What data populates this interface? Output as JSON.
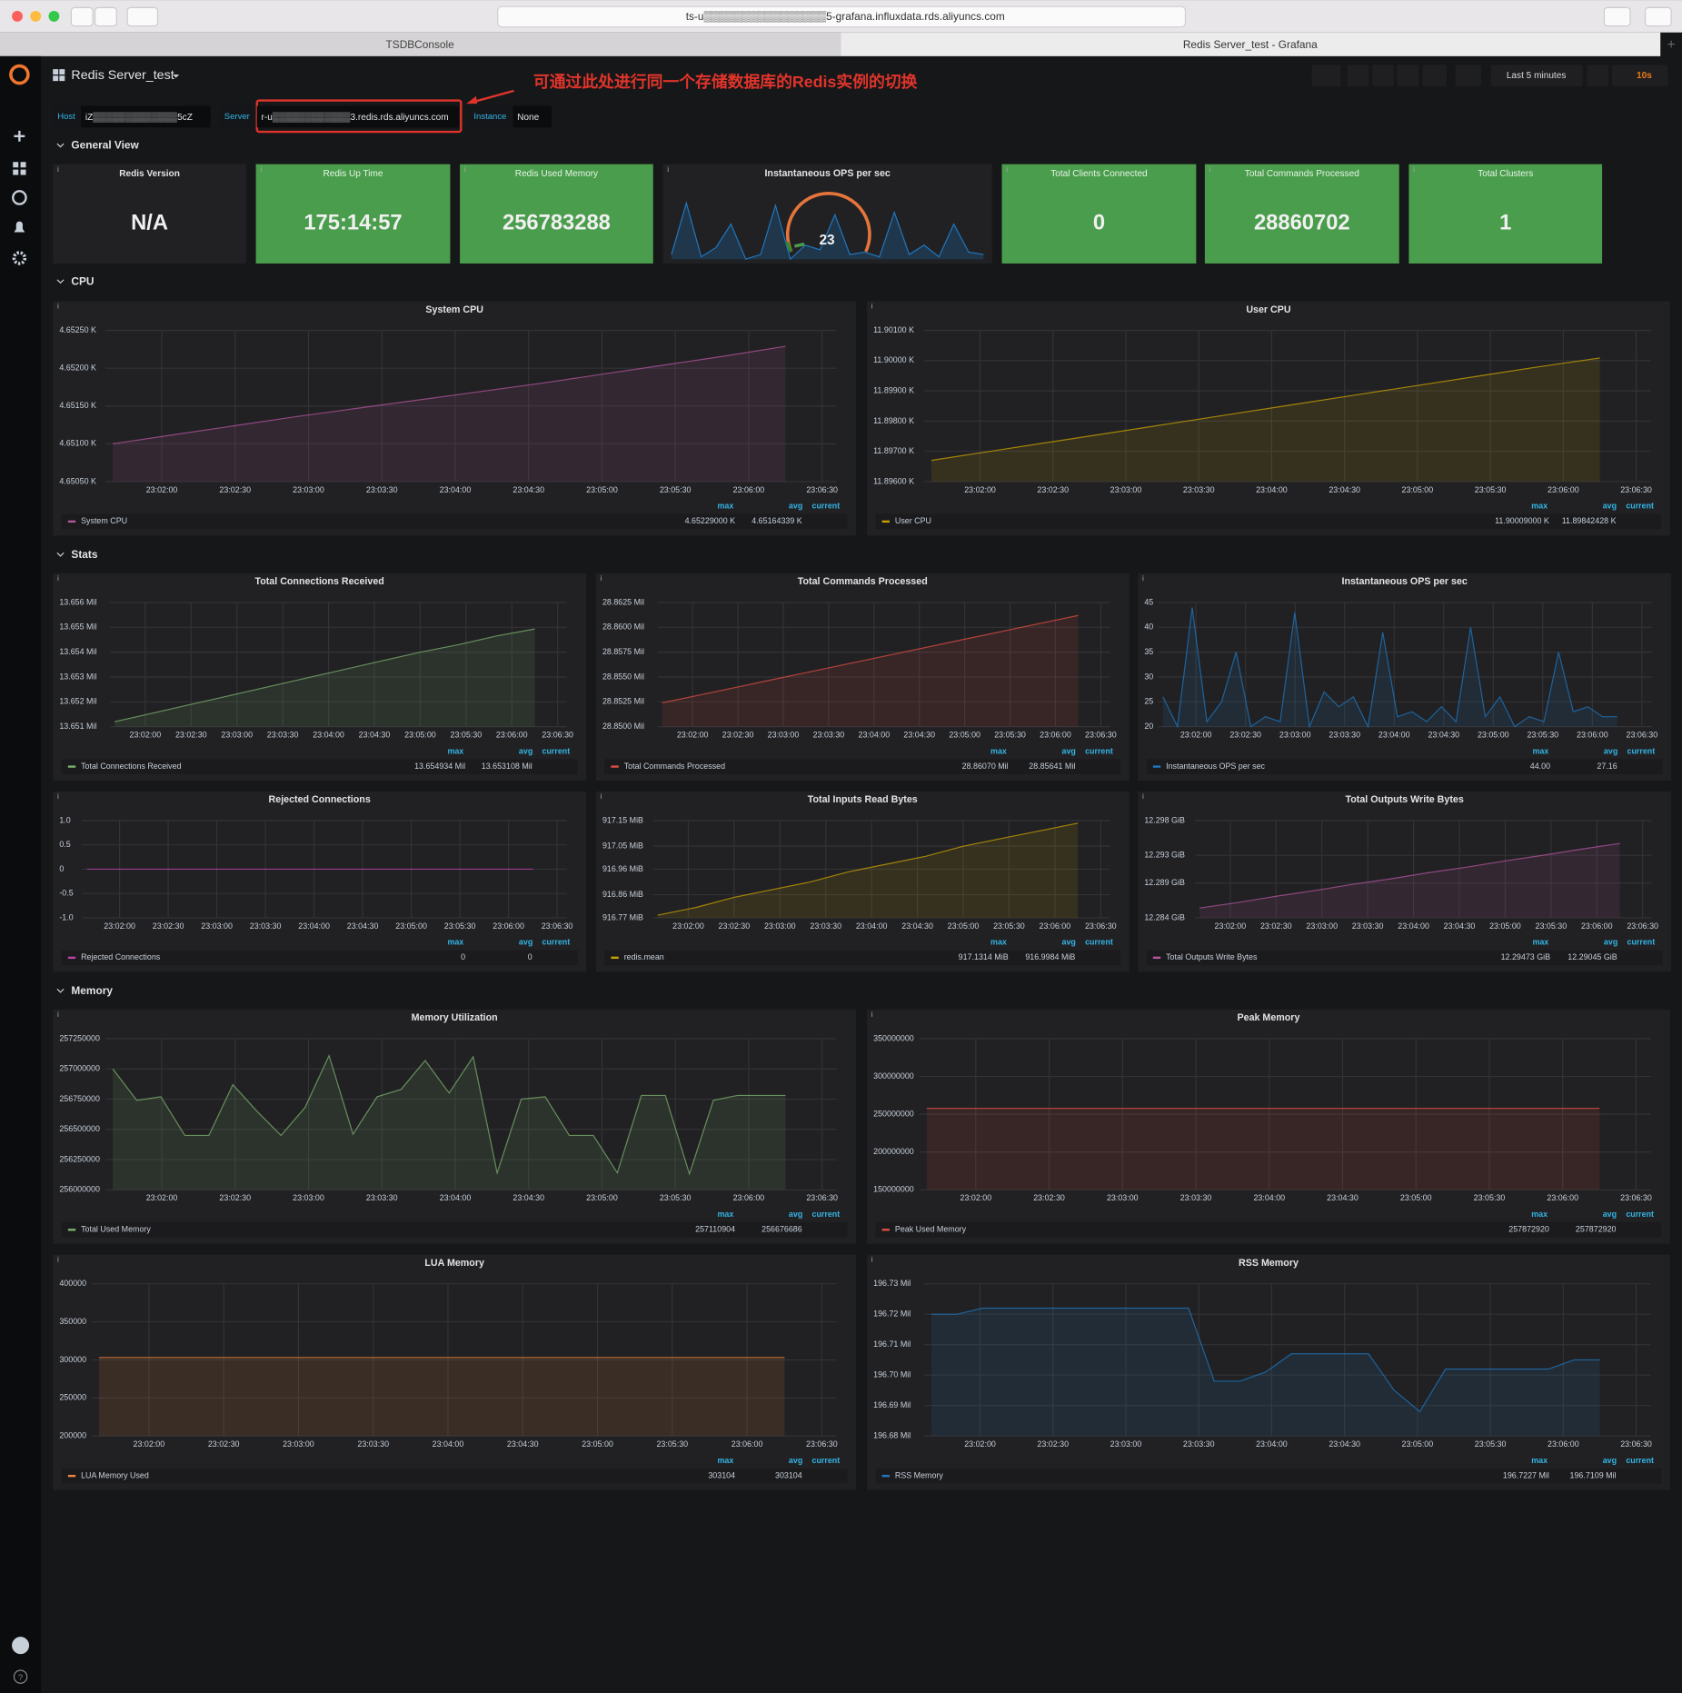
{
  "browser": {
    "url": "ts-u▒▒▒▒▒▒▒▒▒▒▒▒▒▒▒▒5-grafana.influxdata.rds.aliyuncs.com",
    "tabs": [
      "TSDBConsole",
      "Redis Server_test - Grafana"
    ]
  },
  "dashboard": {
    "title": "Redis Server_test",
    "time_range": "Last 5 minutes",
    "refresh": "10s",
    "annotation": "可通过此处进行同一个存储数据库的Redis实例的切换",
    "variables": [
      {
        "label": "Host",
        "value": "iZ▒▒▒▒▒▒▒▒▒▒▒▒▒5cZ"
      },
      {
        "label": "Server",
        "value": "r-u▒▒▒▒▒▒▒▒▒▒▒▒3.redis.rds.aliyuncs.com"
      },
      {
        "label": "Instance",
        "value": "None"
      }
    ],
    "rows": [
      "General View",
      "CPU",
      "Stats",
      "Memory"
    ],
    "legend_columns": [
      "max",
      "avg",
      "current"
    ],
    "stats": [
      {
        "title": "Redis Version",
        "value": "N/A"
      },
      {
        "title": "Redis Up Time",
        "value": "175:14:57"
      },
      {
        "title": "Redis Used Memory",
        "value": "256783288"
      },
      {
        "title": "Total Clients Connected",
        "value": "0"
      },
      {
        "title": "Total Commands Processed",
        "value": "28860702"
      },
      {
        "title": "Total Clusters",
        "value": "1"
      }
    ],
    "gauge": {
      "title": "Instantaneous OPS per sec",
      "value": 23,
      "sparkline": [
        22,
        44,
        21,
        25,
        35,
        20,
        22,
        43,
        20,
        26,
        24,
        39,
        22,
        23,
        21,
        40,
        22,
        26,
        21,
        35,
        23,
        22
      ]
    }
  },
  "chart_data": [
    {
      "type": "line",
      "title": "System CPU",
      "ylim": [
        4650.5,
        4652.5
      ],
      "yticks": [
        {
          "value": 4650.5,
          "label": "4.65050 K"
        },
        {
          "value": 4651,
          "label": "4.65100 K"
        },
        {
          "value": 4651.5,
          "label": "4.65150 K"
        },
        {
          "value": 4652,
          "label": "4.65200 K"
        },
        {
          "value": 4652.5,
          "label": "4.65250 K"
        }
      ],
      "xticks": [
        "23:02:00",
        "23:02:30",
        "23:03:00",
        "23:03:30",
        "23:04:00",
        "23:04:30",
        "23:05:00",
        "23:05:30",
        "23:06:00",
        "23:06:30"
      ],
      "series": [
        {
          "name": "System CPU",
          "color": "#b3569e",
          "legend_max": "4.65229000 K",
          "legend_avg": "4.65164339 K",
          "values": [
            4651.0,
            4651.12,
            4651.24,
            4651.36,
            4651.47,
            4651.58,
            4651.69,
            4651.8,
            4651.92,
            4652.04,
            4652.16,
            4652.29
          ]
        }
      ]
    },
    {
      "type": "line",
      "title": "User CPU",
      "ylim": [
        11896,
        11901
      ],
      "yticks": [
        {
          "value": 11896,
          "label": "11.89600 K"
        },
        {
          "value": 11897,
          "label": "11.89700 K"
        },
        {
          "value": 11898,
          "label": "11.89800 K"
        },
        {
          "value": 11899,
          "label": "11.89900 K"
        },
        {
          "value": 11900,
          "label": "11.90000 K"
        },
        {
          "value": 11901,
          "label": "11.90100 K"
        }
      ],
      "xticks": [
        "23:02:00",
        "23:02:30",
        "23:03:00",
        "23:03:30",
        "23:04:00",
        "23:04:30",
        "23:05:00",
        "23:05:30",
        "23:06:00",
        "23:06:30"
      ],
      "series": [
        {
          "name": "User CPU",
          "color": "#cca300",
          "legend_max": "11.90009000 K",
          "legend_avg": "11.89842428 K",
          "values": [
            11896.7,
            11897.01,
            11897.32,
            11897.63,
            11897.94,
            11898.25,
            11898.56,
            11898.87,
            11899.18,
            11899.49,
            11899.8,
            11900.09
          ]
        }
      ]
    },
    {
      "type": "line",
      "title": "Total Connections Received",
      "ylim": [
        13651000,
        13656000
      ],
      "yticks": [
        {
          "value": 13651000,
          "label": "13.651 Mil"
        },
        {
          "value": 13652000,
          "label": "13.652 Mil"
        },
        {
          "value": 13653000,
          "label": "13.653 Mil"
        },
        {
          "value": 13654000,
          "label": "13.654 Mil"
        },
        {
          "value": 13655000,
          "label": "13.655 Mil"
        },
        {
          "value": 13656000,
          "label": "13.656 Mil"
        }
      ],
      "xticks": [
        "23:02:00",
        "23:02:30",
        "23:03:00",
        "23:03:30",
        "23:04:00",
        "23:04:30",
        "23:05:00",
        "23:05:30",
        "23:06:00",
        "23:06:30"
      ],
      "series": [
        {
          "name": "Total Connections Received",
          "color": "#7eb26d",
          "legend_max": "13.654934 Mil",
          "legend_avg": "13.653108 Mil",
          "values": [
            13651200,
            13651550,
            13651900,
            13652250,
            13652600,
            13652950,
            13653300,
            13653650,
            13654000,
            13654300,
            13654650,
            13654934
          ]
        }
      ]
    },
    {
      "type": "line",
      "title": "Total Commands Processed",
      "ylim": [
        28850000,
        28862500
      ],
      "yticks": [
        {
          "value": 28850000,
          "label": "28.8500 Mil"
        },
        {
          "value": 28852500,
          "label": "28.8525 Mil"
        },
        {
          "value": 28855000,
          "label": "28.8550 Mil"
        },
        {
          "value": 28857500,
          "label": "28.8575 Mil"
        },
        {
          "value": 28860000,
          "label": "28.8600 Mil"
        },
        {
          "value": 28862500,
          "label": "28.8625 Mil"
        }
      ],
      "xticks": [
        "23:02:00",
        "23:02:30",
        "23:03:00",
        "23:03:30",
        "23:04:00",
        "23:04:30",
        "23:05:00",
        "23:05:30",
        "23:06:00",
        "23:06:30"
      ],
      "series": [
        {
          "name": "Total Commands Processed",
          "color": "#e24d42",
          "legend_max": "28.86070 Mil",
          "legend_avg": "28.85641 Mil",
          "values": [
            28852400,
            28853200,
            28854000,
            28854800,
            28855600,
            28856400,
            28857200,
            28858000,
            28858800,
            28859600,
            28860400,
            28861200
          ]
        }
      ]
    },
    {
      "type": "line",
      "title": "Instantaneous OPS per sec",
      "ylim": [
        20,
        45
      ],
      "yticks": [
        20,
        25,
        30,
        35,
        40,
        45
      ],
      "xticks": [
        "23:02:00",
        "23:02:30",
        "23:03:00",
        "23:03:30",
        "23:04:00",
        "23:04:30",
        "23:05:00",
        "23:05:30",
        "23:06:00",
        "23:06:30"
      ],
      "series": [
        {
          "name": "Instantaneous OPS per sec",
          "color": "#1f78c1",
          "legend_max": "44.00",
          "legend_avg": "27.16",
          "values": [
            26,
            20,
            44,
            21,
            25,
            35,
            20,
            22,
            21,
            43,
            20,
            27,
            24,
            26,
            20,
            39,
            22,
            23,
            21,
            24,
            21,
            40,
            22,
            26,
            20,
            22,
            21,
            35,
            23,
            24,
            22,
            22
          ]
        }
      ]
    },
    {
      "type": "line",
      "title": "Rejected Connections",
      "ylim": [
        -1,
        1
      ],
      "yticks": [
        {
          "value": -1,
          "label": "-1.0"
        },
        -0.5,
        0,
        0.5,
        {
          "value": 1,
          "label": "1.0"
        }
      ],
      "xticks": [
        "23:02:00",
        "23:02:30",
        "23:03:00",
        "23:03:30",
        "23:04:00",
        "23:04:30",
        "23:05:00",
        "23:05:30",
        "23:06:00",
        "23:06:30"
      ],
      "series": [
        {
          "name": "Rejected Connections",
          "color": "#ba43a9",
          "legend_max": "0",
          "legend_avg": "0",
          "values": [
            0,
            0,
            0,
            0,
            0,
            0,
            0,
            0,
            0,
            0,
            0,
            0
          ]
        }
      ]
    },
    {
      "type": "line",
      "title": "Total Inputs Read Bytes",
      "ylim": [
        916.77,
        917.15
      ],
      "yticks": [
        {
          "value": 916.77,
          "label": "916.77 MiB"
        },
        {
          "value": 916.86,
          "label": "916.86 MiB"
        },
        {
          "value": 916.96,
          "label": "916.96 MiB"
        },
        {
          "value": 917.05,
          "label": "917.05 MiB"
        },
        {
          "value": 917.15,
          "label": "917.15 MiB"
        }
      ],
      "xticks": [
        "23:02:00",
        "23:02:30",
        "23:03:00",
        "23:03:30",
        "23:04:00",
        "23:04:30",
        "23:05:00",
        "23:05:30",
        "23:06:00",
        "23:06:30"
      ],
      "series": [
        {
          "name": "redis.mean",
          "color": "#cca300",
          "legend_max": "917.1314 MiB",
          "legend_avg": "916.9984 MiB",
          "values": [
            916.78,
            916.81,
            916.85,
            916.88,
            916.91,
            916.95,
            916.98,
            917.01,
            917.05,
            917.08,
            917.11,
            917.14
          ]
        }
      ]
    },
    {
      "type": "line",
      "title": "Total Outputs Write Bytes",
      "ylim": [
        12.284,
        12.298
      ],
      "yticks": [
        {
          "value": 12.284,
          "label": "12.284 GiB"
        },
        {
          "value": 12.289,
          "label": "12.289 GiB"
        },
        {
          "value": 12.293,
          "label": "12.293 GiB"
        },
        {
          "value": 12.298,
          "label": "12.298 GiB"
        }
      ],
      "xticks": [
        "23:02:00",
        "23:02:30",
        "23:03:00",
        "23:03:30",
        "23:04:00",
        "23:04:30",
        "23:05:00",
        "23:05:30",
        "23:06:00",
        "23:06:30"
      ],
      "series": [
        {
          "name": "Total Outputs Write Bytes",
          "color": "#b3569e",
          "legend_max": "12.29473 GiB",
          "legend_avg": "12.29045 GiB",
          "values": [
            12.2854,
            12.2862,
            12.2871,
            12.2879,
            12.2888,
            12.2896,
            12.2905,
            12.2913,
            12.2922,
            12.293,
            12.2939,
            12.2947
          ]
        }
      ]
    },
    {
      "type": "line",
      "title": "Memory Utilization",
      "ylim": [
        256000000,
        257250000
      ],
      "yticks": [
        256000000,
        256250000,
        256500000,
        256750000,
        257000000,
        257250000
      ],
      "xticks": [
        "23:02:00",
        "23:02:30",
        "23:03:00",
        "23:03:30",
        "23:04:00",
        "23:04:30",
        "23:05:00",
        "23:05:30",
        "23:06:00",
        "23:06:30"
      ],
      "series": [
        {
          "name": "Total Used Memory",
          "color": "#7eb26d",
          "legend_max": "257110904",
          "legend_avg": "256676686",
          "values": [
            257000000,
            256740000,
            256770000,
            256450000,
            256450000,
            256870000,
            256650000,
            256450000,
            256680000,
            257110000,
            256460000,
            256770000,
            256830000,
            257070000,
            256800000,
            257100000,
            256140000,
            256750000,
            256770000,
            256450000,
            256450000,
            256140000,
            256780000,
            256780000,
            256130000,
            256740000,
            256780000,
            256780000,
            256780000
          ]
        }
      ]
    },
    {
      "type": "line",
      "title": "Peak Memory",
      "ylim": [
        150000000,
        350000000
      ],
      "yticks": [
        150000000,
        200000000,
        250000000,
        300000000,
        350000000
      ],
      "xticks": [
        "23:02:00",
        "23:02:30",
        "23:03:00",
        "23:03:30",
        "23:04:00",
        "23:04:30",
        "23:05:00",
        "23:05:30",
        "23:06:00",
        "23:06:30"
      ],
      "series": [
        {
          "name": "Peak Used Memory",
          "color": "#e24d42",
          "legend_max": "257872920",
          "legend_avg": "257872920",
          "values": [
            257872920,
            257872920
          ]
        }
      ]
    },
    {
      "type": "line",
      "title": "LUA Memory",
      "ylim": [
        200000,
        400000
      ],
      "yticks": [
        200000,
        250000,
        300000,
        350000,
        400000
      ],
      "xticks": [
        "23:02:00",
        "23:02:30",
        "23:03:00",
        "23:03:30",
        "23:04:00",
        "23:04:30",
        "23:05:00",
        "23:05:30",
        "23:06:00",
        "23:06:30"
      ],
      "series": [
        {
          "name": "LUA Memory Used",
          "color": "#ef843c",
          "legend_max": "303104",
          "legend_avg": "303104",
          "values": [
            303104,
            303104
          ]
        }
      ]
    },
    {
      "type": "line",
      "title": "RSS Memory",
      "ylim": [
        196680000,
        196730000
      ],
      "yticks": [
        {
          "value": 196680000,
          "label": "196.68 Mil"
        },
        {
          "value": 196690000,
          "label": "196.69 Mil"
        },
        {
          "value": 196700000,
          "label": "196.70 Mil"
        },
        {
          "value": 196710000,
          "label": "196.71 Mil"
        },
        {
          "value": 196720000,
          "label": "196.72 Mil"
        },
        {
          "value": 196730000,
          "label": "196.73 Mil"
        }
      ],
      "xticks": [
        "23:02:00",
        "23:02:30",
        "23:03:00",
        "23:03:30",
        "23:04:00",
        "23:04:30",
        "23:05:00",
        "23:05:30",
        "23:06:00",
        "23:06:30"
      ],
      "series": [
        {
          "name": "RSS Memory",
          "color": "#1f78c1",
          "legend_max": "196.7227 Mil",
          "legend_avg": "196.7109 Mil",
          "values": [
            196720000,
            196720000,
            196722000,
            196722000,
            196722000,
            196722000,
            196722000,
            196722000,
            196722000,
            196722000,
            196722000,
            196698000,
            196698000,
            196701000,
            196707000,
            196707000,
            196707000,
            196707000,
            196695000,
            196688000,
            196702000,
            196702000,
            196702000,
            196702000,
            196702000,
            196705000,
            196705000
          ]
        }
      ]
    }
  ]
}
